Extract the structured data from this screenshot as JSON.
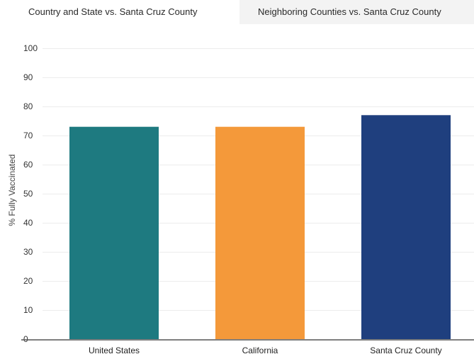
{
  "tabs": [
    {
      "label": "Country and State vs. Santa Cruz County"
    },
    {
      "label": "Neighboring Counties vs. Santa Cruz County"
    }
  ],
  "chart_data": {
    "type": "bar",
    "title": "",
    "xlabel": "",
    "ylabel": "% Fully Vaccinated",
    "ylim": [
      0,
      100
    ],
    "yticks": [
      0,
      10,
      20,
      30,
      40,
      50,
      60,
      70,
      80,
      90,
      100
    ],
    "categories": [
      "United States",
      "California",
      "Santa Cruz County"
    ],
    "values": [
      73,
      73,
      77
    ],
    "colors": [
      "#1e7a80",
      "#f4993a",
      "#1f3f7e"
    ],
    "grid": true,
    "legend": "none"
  }
}
